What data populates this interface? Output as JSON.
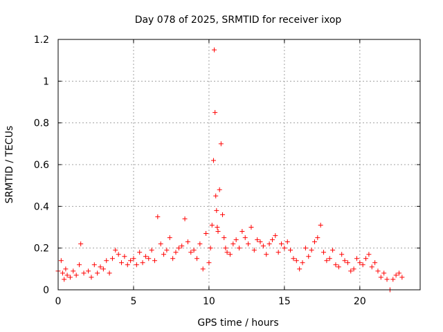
{
  "chart_data": {
    "type": "scatter",
    "title": "Day 078 of 2025, SRMTID for receiver ixop",
    "xlabel": "GPS time / hours",
    "ylabel": "SRMTID / TECUs",
    "xlim": [
      0,
      24
    ],
    "ylim": [
      0,
      1.2
    ],
    "xticks": [
      0,
      5,
      10,
      15,
      20
    ],
    "xtick_labels": [
      "0",
      "5",
      "10",
      "15",
      "20"
    ],
    "yticks": [
      0,
      0.2,
      0.4,
      0.6,
      0.8,
      1.0,
      1.2
    ],
    "ytick_labels": [
      "0",
      "0.2",
      "0.4",
      "0.6",
      "0.8",
      "1",
      "1.2"
    ],
    "grid": true,
    "marker": "+",
    "series": [
      {
        "name": "SRMTID",
        "color": "#ff0000",
        "x": [
          0.0,
          0.2,
          0.3,
          0.4,
          0.5,
          0.6,
          0.8,
          1.0,
          1.2,
          1.4,
          1.5,
          1.7,
          2.0,
          2.2,
          2.4,
          2.6,
          2.8,
          3.0,
          3.2,
          3.4,
          3.6,
          3.8,
          4.0,
          4.2,
          4.4,
          4.6,
          4.8,
          5.0,
          5.2,
          5.4,
          5.6,
          5.8,
          6.0,
          6.2,
          6.4,
          6.6,
          6.8,
          7.0,
          7.2,
          7.4,
          7.6,
          7.8,
          8.0,
          8.2,
          8.4,
          8.6,
          8.8,
          9.0,
          9.2,
          9.4,
          9.6,
          9.8,
          10.0,
          10.1,
          10.2,
          10.3,
          10.35,
          10.4,
          10.45,
          10.5,
          10.55,
          10.6,
          10.7,
          10.8,
          10.9,
          11.0,
          11.1,
          11.2,
          11.4,
          11.6,
          11.8,
          12.0,
          12.2,
          12.4,
          12.6,
          12.8,
          13.0,
          13.2,
          13.4,
          13.6,
          13.8,
          14.0,
          14.2,
          14.4,
          14.6,
          14.8,
          15.0,
          15.2,
          15.4,
          15.6,
          15.8,
          16.0,
          16.2,
          16.4,
          16.6,
          16.8,
          17.0,
          17.2,
          17.4,
          17.6,
          17.8,
          18.0,
          18.2,
          18.4,
          18.6,
          18.8,
          19.0,
          19.2,
          19.4,
          19.6,
          19.8,
          20.0,
          20.2,
          20.4,
          20.6,
          20.8,
          21.0,
          21.2,
          21.4,
          21.6,
          21.8,
          22.0,
          22.2,
          22.4,
          22.6,
          22.8
        ],
        "y": [
          0.09,
          0.14,
          0.08,
          0.05,
          0.1,
          0.07,
          0.06,
          0.09,
          0.07,
          0.12,
          0.22,
          0.08,
          0.09,
          0.06,
          0.12,
          0.08,
          0.11,
          0.1,
          0.14,
          0.08,
          0.15,
          0.19,
          0.17,
          0.13,
          0.16,
          0.12,
          0.14,
          0.15,
          0.12,
          0.18,
          0.13,
          0.16,
          0.15,
          0.19,
          0.14,
          0.35,
          0.22,
          0.17,
          0.19,
          0.25,
          0.15,
          0.18,
          0.2,
          0.21,
          0.34,
          0.23,
          0.18,
          0.19,
          0.15,
          0.22,
          0.1,
          0.27,
          0.13,
          0.2,
          0.31,
          0.62,
          1.15,
          0.85,
          0.45,
          0.38,
          0.3,
          0.28,
          0.48,
          0.7,
          0.36,
          0.25,
          0.2,
          0.18,
          0.17,
          0.22,
          0.24,
          0.2,
          0.28,
          0.25,
          0.22,
          0.3,
          0.19,
          0.24,
          0.23,
          0.21,
          0.17,
          0.22,
          0.24,
          0.26,
          0.18,
          0.22,
          0.2,
          0.23,
          0.19,
          0.15,
          0.14,
          0.1,
          0.13,
          0.2,
          0.16,
          0.19,
          0.23,
          0.25,
          0.31,
          0.18,
          0.14,
          0.15,
          0.19,
          0.12,
          0.11,
          0.17,
          0.14,
          0.13,
          0.09,
          0.1,
          0.15,
          0.13,
          0.12,
          0.15,
          0.17,
          0.11,
          0.13,
          0.09,
          0.06,
          0.08,
          0.05,
          0.0,
          0.05,
          0.07,
          0.08,
          0.06
        ]
      }
    ]
  }
}
